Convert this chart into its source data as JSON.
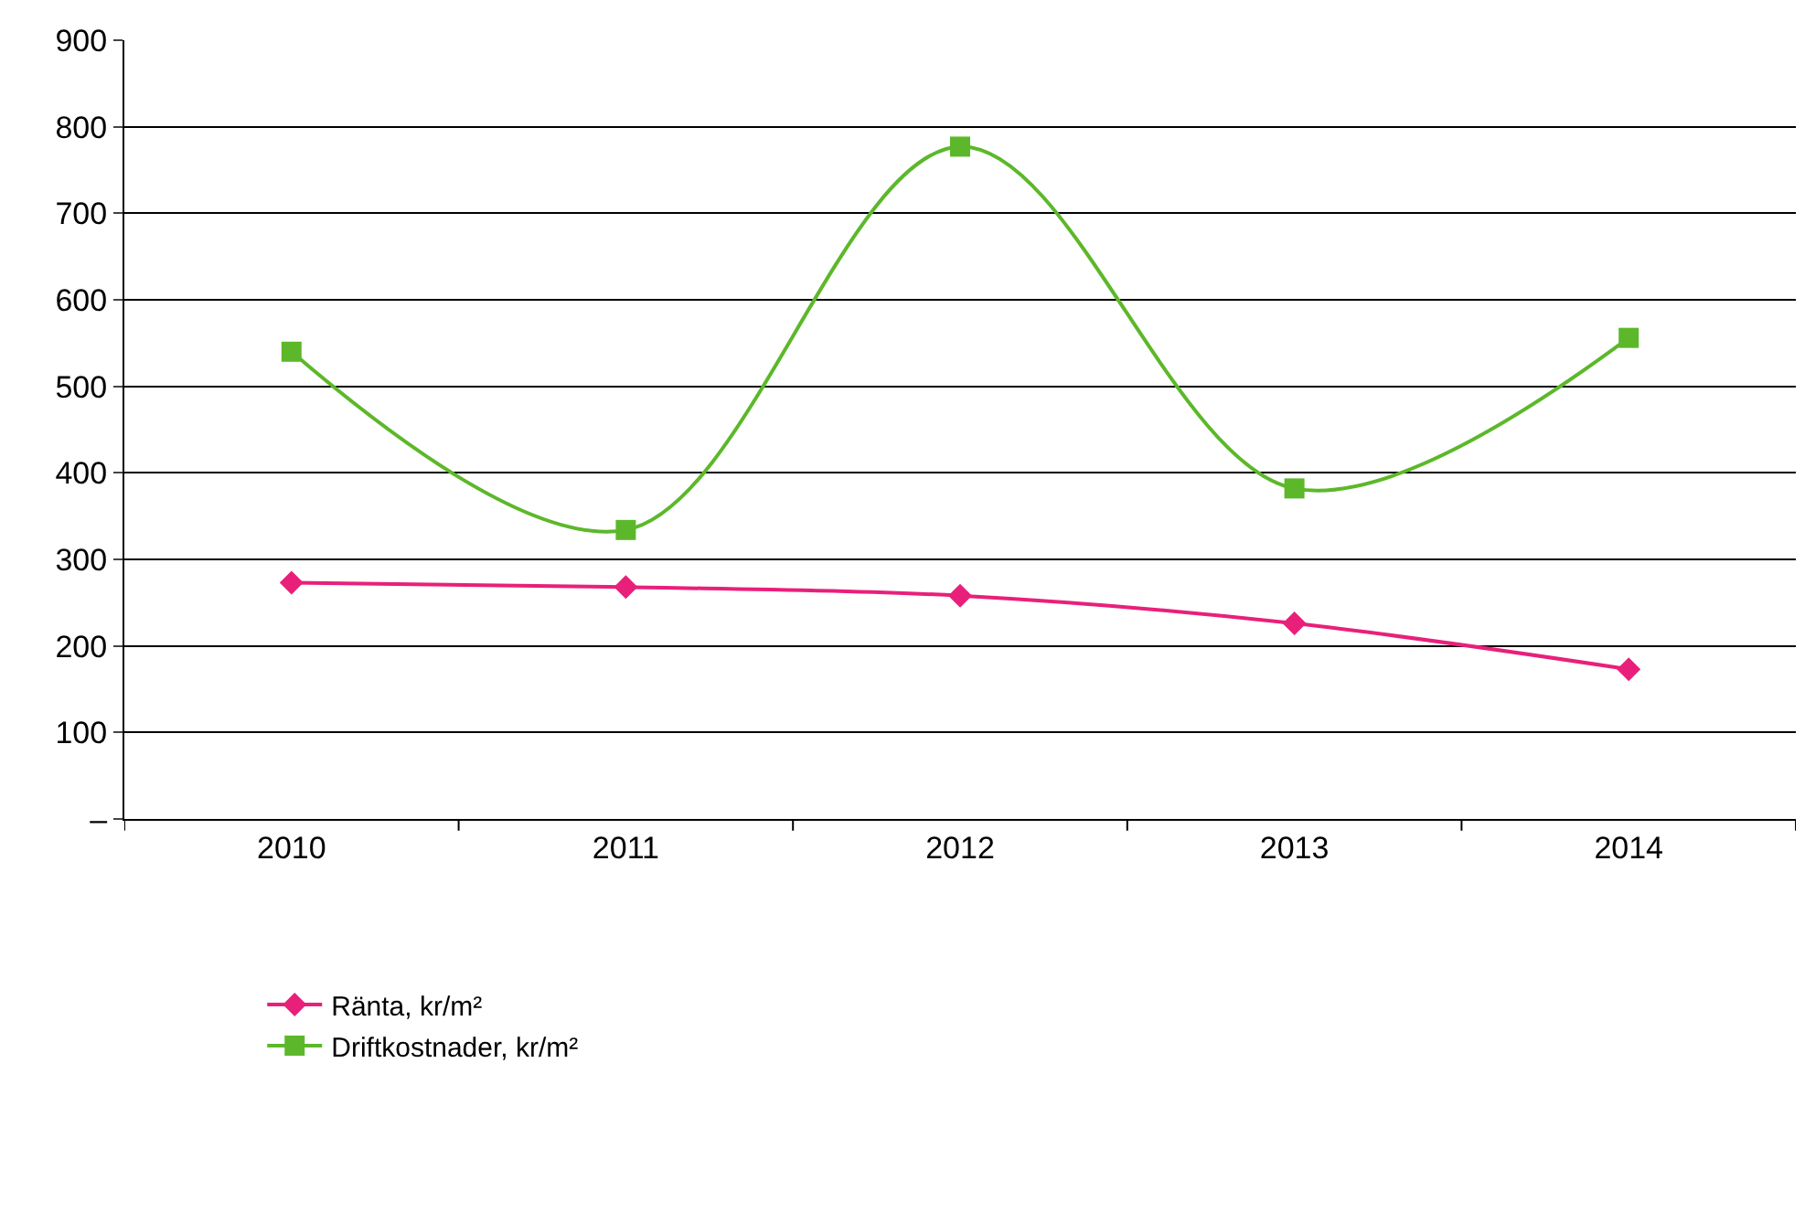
{
  "chart_data": {
    "type": "line",
    "categories": [
      "2010",
      "2011",
      "2012",
      "2013",
      "2014"
    ],
    "series": [
      {
        "name": "Ränta, kr/m²",
        "color": "#e8207a",
        "values": [
          273,
          268,
          258,
          226,
          173
        ],
        "marker": "diamond"
      },
      {
        "name": "Driftkostnader, kr/m²",
        "color": "#5cb82a",
        "values": [
          540,
          334,
          777,
          382,
          556
        ],
        "marker": "square"
      }
    ],
    "ylim": [
      0,
      900
    ],
    "yticks": [
      {
        "value": 0,
        "label": "–"
      },
      100,
      200,
      300,
      400,
      500,
      600,
      700,
      800,
      900
    ],
    "grid": "y",
    "legend": "bottom left"
  }
}
